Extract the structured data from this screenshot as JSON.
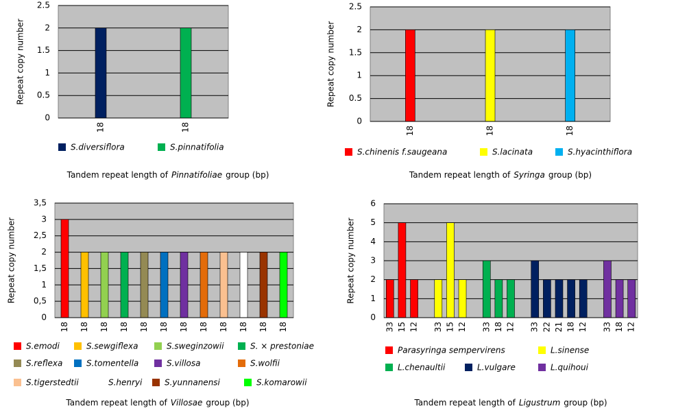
{
  "chart_data": [
    {
      "type": "bar",
      "y_label": "Repeat copy number",
      "x_label": {
        "prefix": "Tandem repeat  length of",
        "italic": "Pinnatifoliae",
        "suffix": "group (bp)"
      },
      "categories": [
        "18",
        "18"
      ],
      "series": [
        {
          "name": "S.diversiflora",
          "color": "#002060",
          "values": [
            2,
            null
          ]
        },
        {
          "name": "S.pinnatifolia",
          "color": "#00B050",
          "values": [
            null,
            2
          ]
        }
      ],
      "ylim": [
        0,
        2.5
      ],
      "yticks": [
        0,
        0.5,
        1,
        1.5,
        2,
        2.5
      ],
      "grid": true,
      "plot_background": "#c0c0c0"
    },
    {
      "type": "bar",
      "y_label": "Repeat copy number",
      "x_label": {
        "prefix": "Tandem repeat  length of",
        "italic": "Syringa",
        "suffix": "group (bp)"
      },
      "categories": [
        "18",
        "18",
        "18"
      ],
      "series": [
        {
          "name": "S.chinenis f.saugeana",
          "color": "#FF0000",
          "values": [
            2,
            null,
            null
          ]
        },
        {
          "name": "S.lacinata",
          "color": "#FFFF00",
          "values": [
            null,
            2,
            null
          ]
        },
        {
          "name": "S.hyacinthiflora",
          "color": "#00B0F0",
          "values": [
            null,
            null,
            2
          ]
        }
      ],
      "ylim": [
        0,
        2.5
      ],
      "yticks": [
        0,
        0.5,
        1,
        1.5,
        2,
        2.5
      ],
      "grid": true,
      "plot_background": "#c0c0c0"
    },
    {
      "type": "bar",
      "y_label": "Repeat copy number",
      "x_label": {
        "prefix": "Tandem repeat  length of",
        "italic": "Villosae",
        "suffix": "group (bp)"
      },
      "categories": [
        "18",
        "18",
        "18",
        "18",
        "18",
        "18",
        "18",
        "18",
        "18",
        "18",
        "18",
        "18"
      ],
      "series": [
        {
          "name": "S.emodi",
          "color": "#FF0000",
          "values": [
            3,
            null,
            null,
            null,
            null,
            null,
            null,
            null,
            null,
            null,
            null,
            null
          ]
        },
        {
          "name": "S.sewgiflexa",
          "color": "#FFC000",
          "values": [
            null,
            2,
            null,
            null,
            null,
            null,
            null,
            null,
            null,
            null,
            null,
            null
          ]
        },
        {
          "name": "S.sweginzowii",
          "color": "#92D050",
          "values": [
            null,
            null,
            2,
            null,
            null,
            null,
            null,
            null,
            null,
            null,
            null,
            null
          ]
        },
        {
          "name": "S. × prestoniae",
          "color": "#00B050",
          "values": [
            null,
            null,
            null,
            2,
            null,
            null,
            null,
            null,
            null,
            null,
            null,
            null
          ]
        },
        {
          "name": "S.reflexa",
          "color": "#948A54",
          "values": [
            null,
            null,
            null,
            null,
            2,
            null,
            null,
            null,
            null,
            null,
            null,
            null
          ]
        },
        {
          "name": "S.tomentella",
          "color": "#0070C0",
          "values": [
            null,
            null,
            null,
            null,
            null,
            2,
            null,
            null,
            null,
            null,
            null,
            null
          ]
        },
        {
          "name": "S.villosa",
          "color": "#7030A0",
          "values": [
            null,
            null,
            null,
            null,
            null,
            null,
            2,
            null,
            null,
            null,
            null,
            null
          ]
        },
        {
          "name": "S.wolfii",
          "color": "#E36C0A",
          "values": [
            null,
            null,
            null,
            null,
            null,
            null,
            null,
            2,
            null,
            null,
            null,
            null
          ]
        },
        {
          "name": "S.tigerstedtii",
          "color": "#FAC090",
          "values": [
            null,
            null,
            null,
            null,
            null,
            null,
            null,
            null,
            2,
            null,
            null,
            null
          ]
        },
        {
          "name": "S.henryi",
          "color": "#FFFFFF",
          "values": [
            null,
            null,
            null,
            null,
            null,
            null,
            null,
            null,
            null,
            2,
            null,
            null
          ]
        },
        {
          "name": "S.yunnanensi",
          "color": "#993300",
          "values": [
            null,
            null,
            null,
            null,
            null,
            null,
            null,
            null,
            null,
            null,
            2,
            null
          ]
        },
        {
          "name": "S.komarowii",
          "color": "#00FF00",
          "values": [
            null,
            null,
            null,
            null,
            null,
            null,
            null,
            null,
            null,
            null,
            null,
            2
          ]
        }
      ],
      "ylim": [
        0,
        3.5
      ],
      "yticks": [
        0,
        {
          "value": 0.5,
          "label": "0,5"
        },
        1,
        {
          "value": 1.5,
          "label": "1,5"
        },
        2,
        {
          "value": 2.5,
          "label": "2,5"
        },
        3,
        {
          "value": 3.5,
          "label": "3,5"
        }
      ],
      "grid": true,
      "plot_background": "#c0c0c0"
    },
    {
      "type": "bar",
      "y_label": "Repeat copy number",
      "x_label": {
        "prefix": "Tandem repeat length of",
        "italic": "Ligustrum",
        "suffix": "group (bp)"
      },
      "categories": [
        "33",
        "15",
        "12",
        null,
        "33",
        "15",
        "12",
        null,
        "33",
        "18",
        "12",
        null,
        "33",
        "22",
        "21",
        "18",
        "12",
        null,
        "33",
        "18",
        "12"
      ],
      "series": [
        {
          "name": "Parasyringa  sempervirens",
          "color": "#FF0000",
          "values": [
            2,
            5,
            2,
            null,
            null,
            null,
            null,
            null,
            null,
            null,
            null,
            null,
            null,
            null,
            null,
            null,
            null,
            null,
            null,
            null,
            null
          ]
        },
        {
          "name": "L.sinense",
          "color": "#FFFF00",
          "values": [
            null,
            null,
            null,
            null,
            2,
            5,
            2,
            null,
            null,
            null,
            null,
            null,
            null,
            null,
            null,
            null,
            null,
            null,
            null,
            null,
            null
          ]
        },
        {
          "name": "L.chenaultii",
          "color": "#00B050",
          "values": [
            null,
            null,
            null,
            null,
            null,
            null,
            null,
            null,
            3,
            2,
            2,
            null,
            null,
            null,
            null,
            null,
            null,
            null,
            null,
            null,
            null
          ]
        },
        {
          "name": "L.vulgare",
          "color": "#002060",
          "values": [
            null,
            null,
            null,
            null,
            null,
            null,
            null,
            null,
            null,
            null,
            null,
            null,
            3,
            2,
            2,
            2,
            2,
            null,
            null,
            null,
            null
          ]
        },
        {
          "name": "L.quihoui",
          "color": "#7030A0",
          "values": [
            null,
            null,
            null,
            null,
            null,
            null,
            null,
            null,
            null,
            null,
            null,
            null,
            null,
            null,
            null,
            null,
            null,
            null,
            3,
            2,
            2
          ]
        }
      ],
      "ylim": [
        0,
        6
      ],
      "yticks": [
        0,
        1,
        2,
        3,
        4,
        5,
        6
      ],
      "grid": true,
      "plot_background": "#c0c0c0"
    }
  ]
}
